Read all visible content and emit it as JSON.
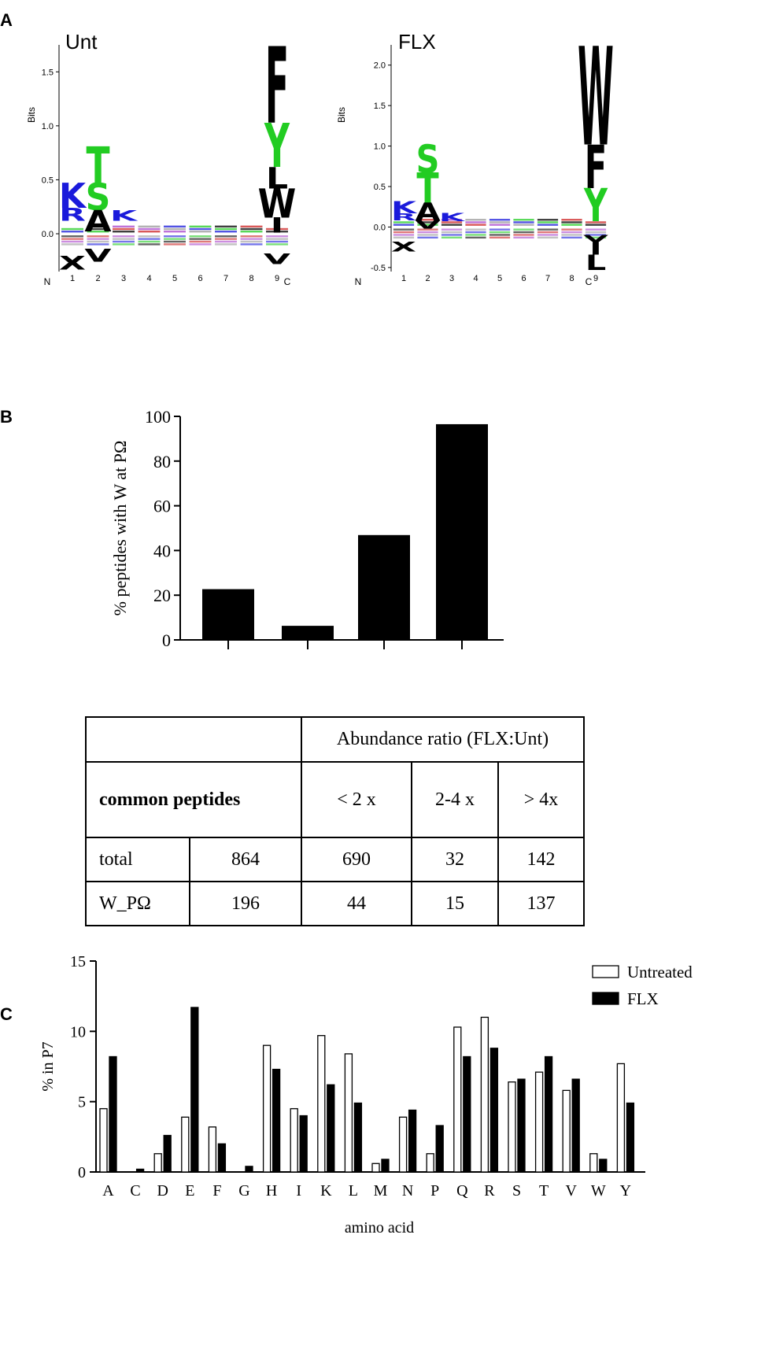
{
  "panels": {
    "a": "A",
    "b": "B",
    "c": "C"
  },
  "chart_data": [
    {
      "type": "sequence-logo",
      "title": "Unt",
      "ylabel": "Bits",
      "ylim": [
        -0.35,
        1.75
      ],
      "yticks": [
        "0.0",
        "0.5",
        "1.0",
        "1.5"
      ],
      "ytick_values": [
        0,
        0.5,
        1.0,
        1.5
      ],
      "positions": [
        "1",
        "2",
        "3",
        "4",
        "5",
        "6",
        "7",
        "8",
        "9"
      ],
      "n_label": "N",
      "c_label": "C",
      "stacks": [
        {
          "pos": 1,
          "letters": [
            {
              "aa": "K",
              "top": 0.47,
              "bottom": 0.24,
              "color": "#1a1adb"
            },
            {
              "aa": "R",
              "top": 0.24,
              "bottom": 0.12,
              "color": "#1a1adb"
            },
            {
              "aa": "X",
              "top": -0.2,
              "bottom": -0.33,
              "color": "#000000"
            }
          ]
        },
        {
          "pos": 2,
          "letters": [
            {
              "aa": "T",
              "top": 0.81,
              "bottom": 0.47,
              "color": "#22cc22"
            },
            {
              "aa": "S",
              "top": 0.47,
              "bottom": 0.22,
              "color": "#22cc22"
            },
            {
              "aa": "A",
              "top": 0.22,
              "bottom": 0.02,
              "color": "#000000"
            },
            {
              "aa": "V",
              "top": -0.14,
              "bottom": -0.26,
              "color": "#000000"
            }
          ]
        },
        {
          "pos": 3,
          "letters": [
            {
              "aa": "K",
              "top": 0.22,
              "bottom": 0.12,
              "color": "#1a1adb"
            }
          ]
        },
        {
          "pos": 9,
          "letters": [
            {
              "aa": "F",
              "top": 1.74,
              "bottom": 1.03,
              "color": "#000000"
            },
            {
              "aa": "Y",
              "top": 1.03,
              "bottom": 0.62,
              "color": "#22cc22"
            },
            {
              "aa": "L",
              "top": 0.62,
              "bottom": 0.42,
              "color": "#000000"
            },
            {
              "aa": "W",
              "top": 0.42,
              "bottom": 0.15,
              "color": "#000000"
            },
            {
              "aa": "I",
              "top": 0.15,
              "bottom": 0.01,
              "color": "#000000"
            },
            {
              "aa": "V",
              "top": -0.18,
              "bottom": -0.28,
              "color": "#000000"
            }
          ]
        }
      ]
    },
    {
      "type": "sequence-logo",
      "title": "FLX",
      "ylabel": "Bits",
      "ylim": [
        -0.55,
        2.25
      ],
      "yticks": [
        "-0.5",
        "0.0",
        "0.5",
        "1.0",
        "1.5",
        "2.0"
      ],
      "ytick_values": [
        -0.5,
        0,
        0.5,
        1.0,
        1.5,
        2.0
      ],
      "positions": [
        "1",
        "2",
        "3",
        "4",
        "5",
        "6",
        "7",
        "8",
        "9"
      ],
      "n_label": "N",
      "c_label": "C",
      "stacks": [
        {
          "pos": 1,
          "letters": [
            {
              "aa": "K",
              "top": 0.32,
              "bottom": 0.17,
              "color": "#1a1adb"
            },
            {
              "aa": "R",
              "top": 0.17,
              "bottom": 0.08,
              "color": "#1a1adb"
            },
            {
              "aa": "X",
              "top": -0.18,
              "bottom": -0.3,
              "color": "#000000"
            }
          ]
        },
        {
          "pos": 2,
          "letters": [
            {
              "aa": "S",
              "top": 1.02,
              "bottom": 0.67,
              "color": "#22cc22"
            },
            {
              "aa": "T",
              "top": 0.67,
              "bottom": 0.3,
              "color": "#22cc22"
            },
            {
              "aa": "A",
              "top": 0.3,
              "bottom": 0.08,
              "color": "#000000"
            },
            {
              "aa": "V",
              "top": 0.08,
              "bottom": -0.02,
              "color": "#000000"
            }
          ]
        },
        {
          "pos": 3,
          "letters": [
            {
              "aa": "K",
              "top": 0.17,
              "bottom": 0.07,
              "color": "#1a1adb"
            }
          ]
        },
        {
          "pos": 9,
          "letters": [
            {
              "aa": "W",
              "top": 2.24,
              "bottom": 1.02,
              "color": "#000000"
            },
            {
              "aa": "F",
              "top": 1.02,
              "bottom": 0.48,
              "color": "#000000"
            },
            {
              "aa": "Y",
              "top": 0.48,
              "bottom": 0.07,
              "color": "#22cc22"
            },
            {
              "aa": "V",
              "top": -0.1,
              "bottom": -0.18,
              "color": "#000000"
            },
            {
              "aa": "I",
              "top": -0.18,
              "bottom": -0.34,
              "color": "#000000"
            },
            {
              "aa": "L",
              "top": -0.34,
              "bottom": -0.53,
              "color": "#000000"
            }
          ]
        }
      ]
    },
    {
      "type": "bar",
      "ylabel": "% peptides with W at PΩ",
      "ylim": [
        0,
        100
      ],
      "yticks": [
        "0",
        "20",
        "40",
        "60",
        "80",
        "100"
      ],
      "ytick_values": [
        0,
        20,
        40,
        60,
        80,
        100
      ],
      "values": [
        22.7,
        6.3,
        46.9,
        96.5
      ],
      "color": "#000000"
    },
    {
      "type": "table",
      "header": "Abundance ratio (FLX:Unt)",
      "row_header": "common peptides",
      "columns": [
        "< 2 x",
        "2-4 x",
        "> 4x"
      ],
      "rows": [
        {
          "label": "total",
          "total": "864",
          "cells": [
            "690",
            "32",
            "142"
          ]
        },
        {
          "label": "W_PΩ",
          "total": "196",
          "cells": [
            "44",
            "15",
            "137"
          ]
        }
      ]
    },
    {
      "type": "bar",
      "categories": [
        "A",
        "C",
        "D",
        "E",
        "F",
        "G",
        "H",
        "I",
        "K",
        "L",
        "M",
        "N",
        "P",
        "Q",
        "R",
        "S",
        "T",
        "V",
        "W",
        "Y"
      ],
      "series": [
        {
          "name": "Untreated",
          "values": [
            4.5,
            0,
            1.3,
            3.9,
            3.2,
            0,
            9.0,
            4.5,
            9.7,
            8.4,
            0.6,
            3.9,
            1.3,
            10.3,
            11.0,
            6.4,
            7.1,
            5.8,
            1.3,
            7.7
          ],
          "fill": "#ffffff",
          "stroke": "#000000"
        },
        {
          "name": "FLX",
          "values": [
            8.2,
            0.2,
            2.6,
            11.7,
            2.0,
            0.4,
            7.3,
            4.0,
            6.2,
            4.9,
            0.9,
            4.4,
            3.3,
            8.2,
            8.8,
            6.6,
            8.2,
            6.6,
            0.9,
            4.9
          ],
          "fill": "#000000",
          "stroke": "#000000"
        }
      ],
      "xlabel": "amino acid",
      "ylabel": "% in P7",
      "ylim": [
        0,
        15
      ],
      "yticks": [
        "0",
        "5",
        "10",
        "15"
      ],
      "ytick_values": [
        0,
        5,
        10,
        15
      ],
      "legend": "top-right"
    }
  ]
}
